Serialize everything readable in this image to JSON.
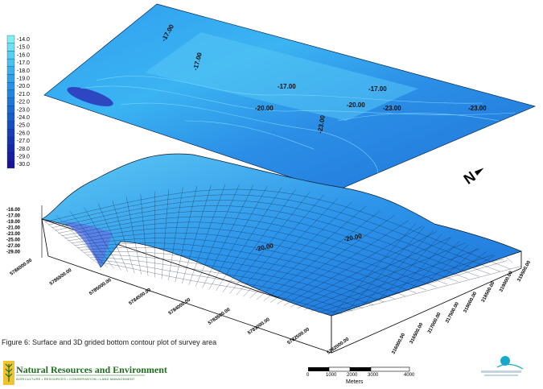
{
  "legend": {
    "labels": [
      "-14.0",
      "-15.0",
      "-16.0",
      "-17.0",
      "-18.0",
      "-19.0",
      "-20.0",
      "-21.0",
      "-22.0",
      "-23.0",
      "-24.0",
      "-25.0",
      "-26.0",
      "-27.0",
      "-28.0",
      "-29.0",
      "-30.0"
    ],
    "colors": [
      "#7ef0f4",
      "#68e2f4",
      "#54d2f3",
      "#44c2f1",
      "#38b2ee",
      "#2ea2ea",
      "#2694e6",
      "#2086e1",
      "#1c78da",
      "#196ad2",
      "#175ccb",
      "#164ec2",
      "#1540ba",
      "#1534b2",
      "#1628aa",
      "#171ea2",
      "#18149a"
    ]
  },
  "contour_labels": [
    "-17.00",
    "-17.00",
    "-17.00",
    "-17.00",
    "-20.00",
    "-20.00",
    "-23.00",
    "-23.00",
    "-23.00"
  ],
  "surface_labels": [
    "-20.00",
    "-20.00"
  ],
  "z_axis_labels": [
    "-16.00",
    "-17.00",
    "-19.00",
    "-21.00",
    "-23.00",
    "-25.00",
    "-27.00",
    "-29.00"
  ],
  "y_axis_labels": [
    "5786000.00",
    "5785500.00",
    "5785000.00",
    "5784500.00",
    "5784000.00",
    "5783500.00",
    "5783000.00",
    "5782500.00",
    "5782000.00"
  ],
  "x_axis_labels": [
    "316000.00",
    "316500.00",
    "317000.00",
    "317500.00",
    "318000.00",
    "318500.00",
    "319000.00",
    "319500.00"
  ],
  "north_arrow": "N",
  "caption": "Figure 6: Surface and 3D grided bottom contour plot of survey area",
  "logo": {
    "title": "Natural Resources and Environment",
    "subtitle": "AGRICULTURE • RESOURCES • CONSERVATION • LAND MANAGEMENT"
  },
  "scalebar": {
    "ticks": [
      "0",
      "1000",
      "2000",
      "3000",
      "4000"
    ],
    "unit": "Meters"
  },
  "colors": {
    "mesh_line": "#0b1a2e",
    "side_wall": "#ffffff",
    "accent": "#1f6e1f"
  }
}
